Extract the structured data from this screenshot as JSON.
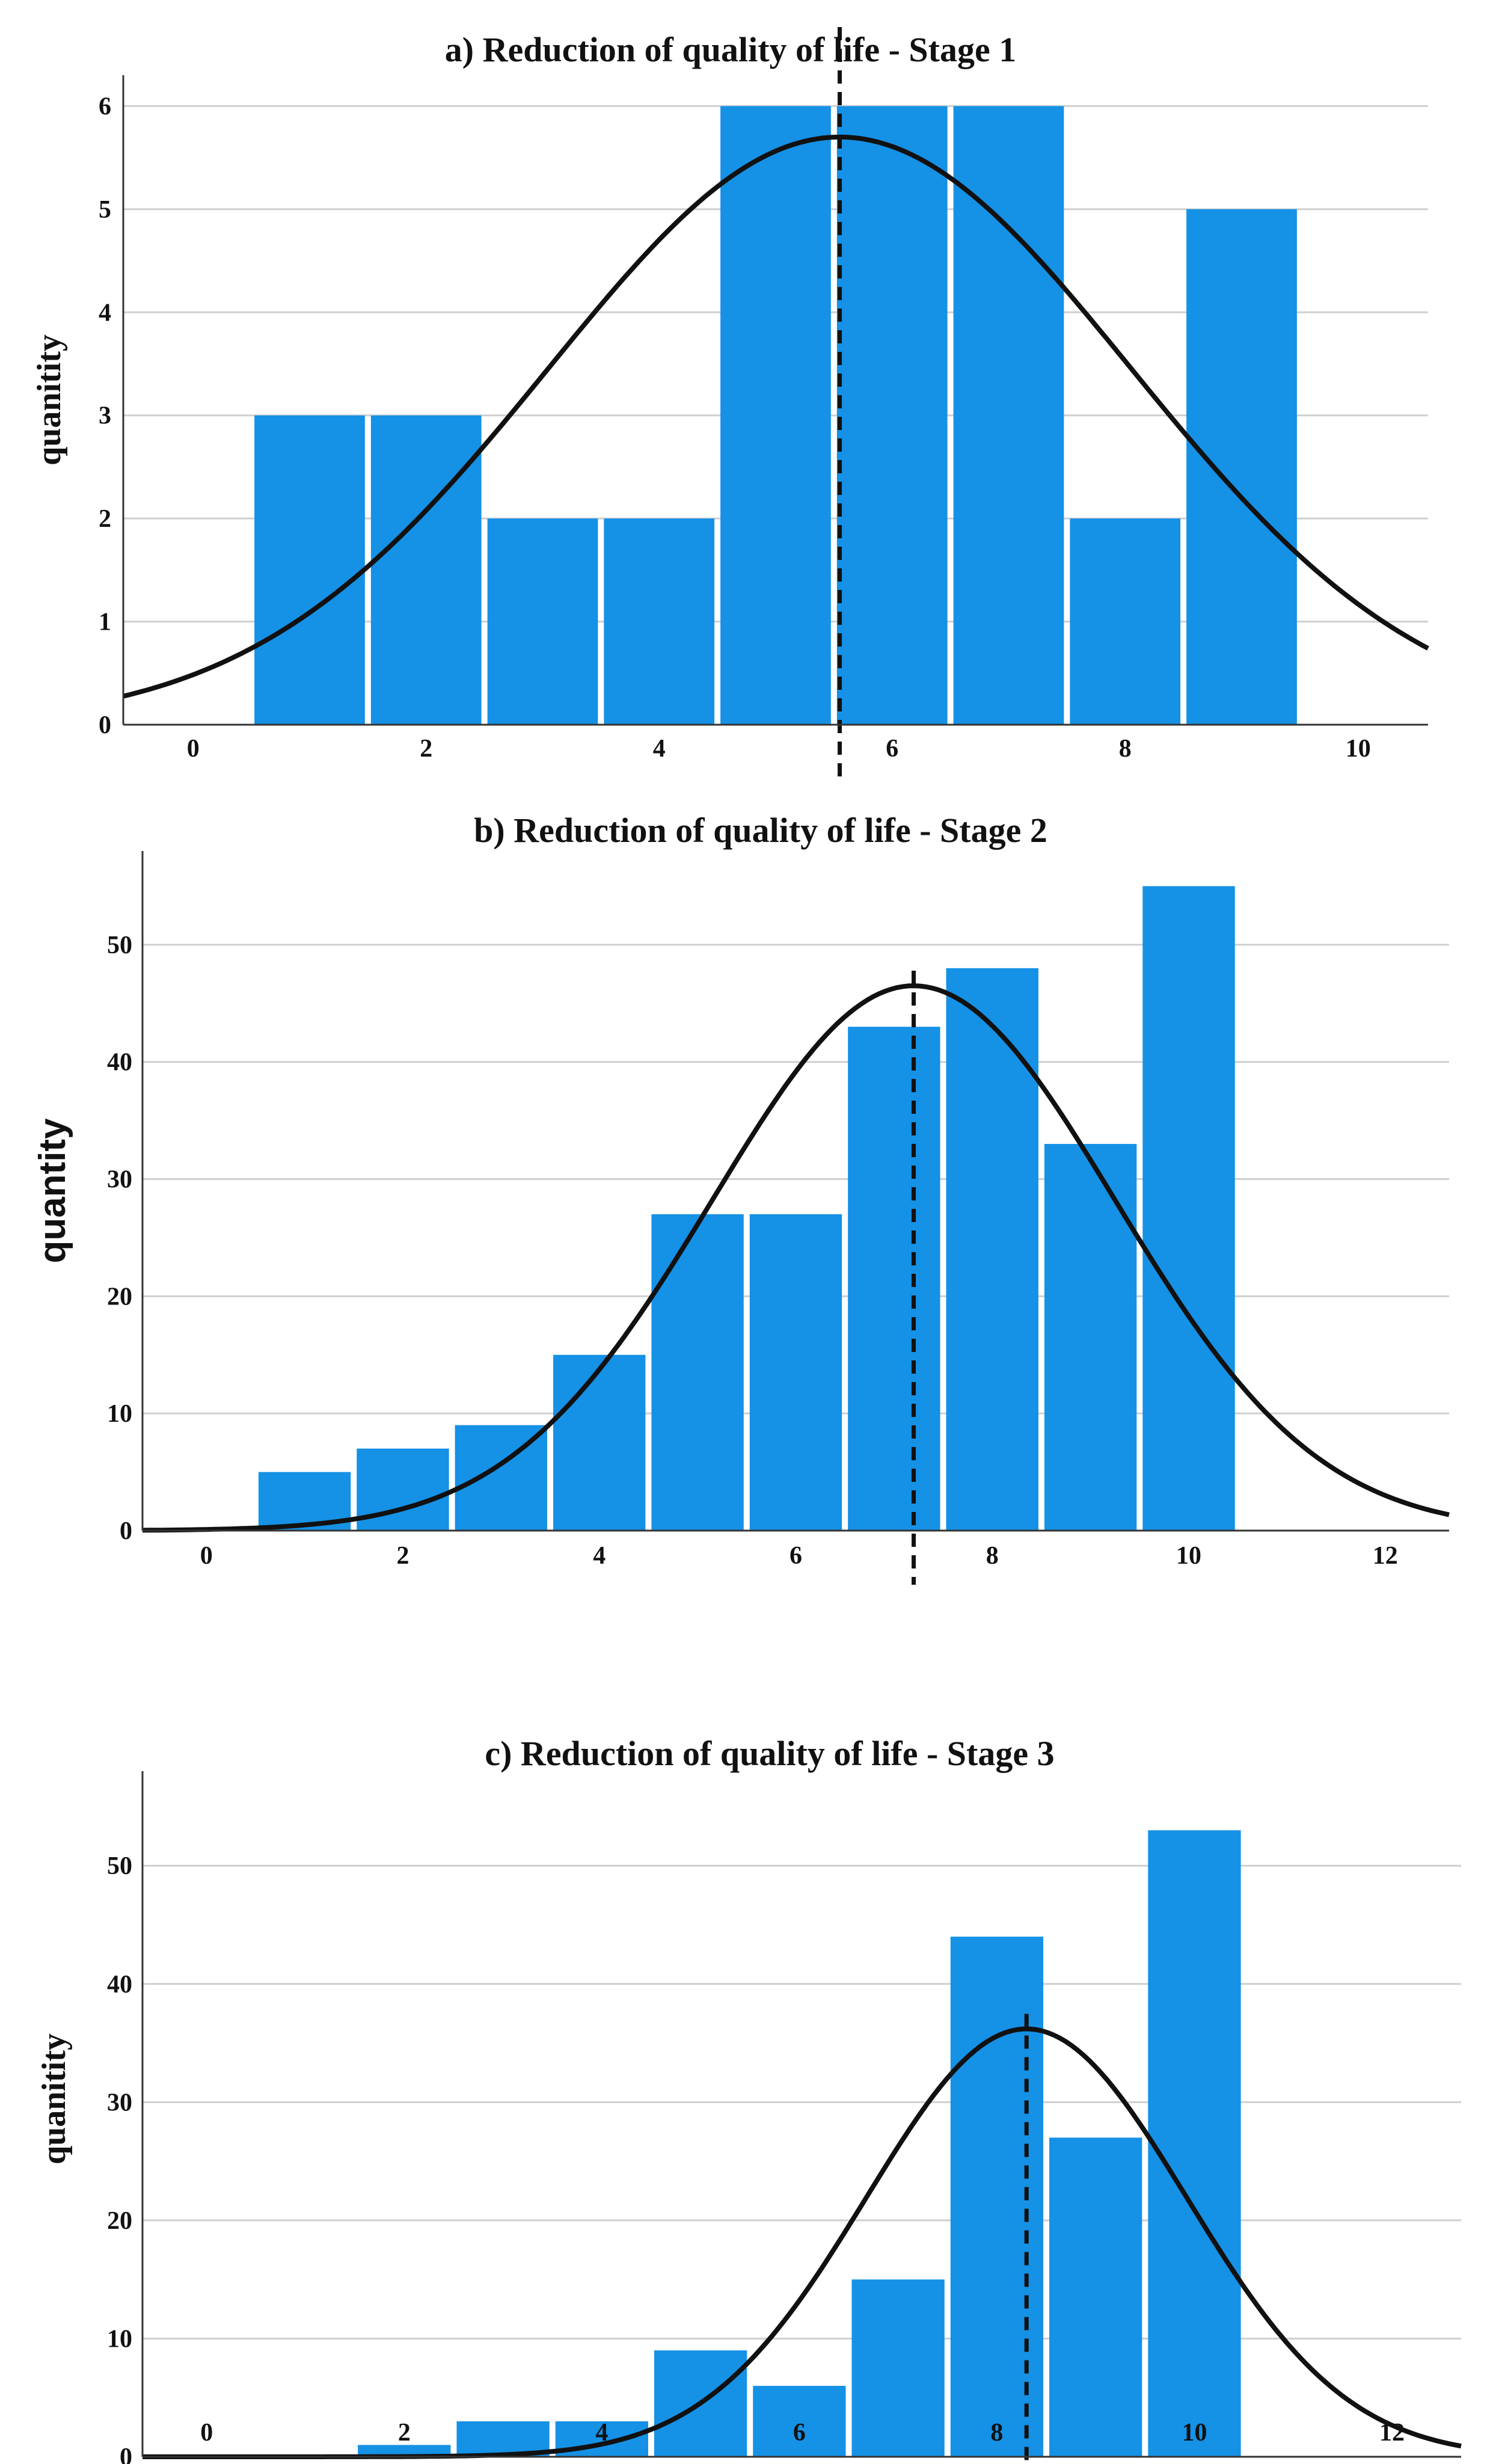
{
  "chart_data": [
    {
      "type": "bar",
      "title": "a) Reduction of quality of life - Stage 1",
      "xlabel": "",
      "ylabel": "quanitity",
      "bar_color": "#1591e6",
      "x": [
        1,
        2,
        3,
        4,
        5,
        6,
        7,
        8,
        9
      ],
      "values": [
        3,
        3,
        2,
        2,
        6,
        6,
        6,
        2,
        5
      ],
      "xlim": [
        -0.6,
        10.6
      ],
      "ylim": [
        0,
        6.3
      ],
      "xticks": [
        0,
        2,
        4,
        6,
        8,
        10
      ],
      "yticks": [
        0,
        1,
        2,
        3,
        4,
        5,
        6
      ],
      "grid": true,
      "normal_curve": {
        "mean": 5.55,
        "sd": 2.5,
        "peak": 5.7
      },
      "mean_line": 5.55
    },
    {
      "type": "bar",
      "title": "b) Reduction of quality of life - Stage 2",
      "xlabel": "",
      "ylabel": "quantity",
      "bar_color": "#1591e6",
      "x": [
        1,
        2,
        3,
        4,
        5,
        6,
        7,
        8,
        9,
        10
      ],
      "values": [
        5,
        7,
        9,
        15,
        27,
        27,
        43,
        48,
        33,
        55
      ],
      "xlim": [
        -0.65,
        12.65
      ],
      "ylim": [
        0,
        58
      ],
      "xticks": [
        0,
        2,
        4,
        6,
        8,
        10,
        12
      ],
      "yticks": [
        0,
        10,
        20,
        30,
        40,
        50
      ],
      "grid": true,
      "normal_curve": {
        "mean": 7.2,
        "sd": 2.05,
        "peak": 46.5
      },
      "mean_line": 7.2
    },
    {
      "type": "bar",
      "title": "c) Reduction of quality of life - Stage 3",
      "xlabel": "",
      "ylabel": "quanitity",
      "bar_color": "#1591e6",
      "x": [
        2,
        3,
        4,
        5,
        6,
        7,
        8,
        9,
        10
      ],
      "values": [
        1,
        3,
        3,
        9,
        6,
        15,
        44,
        27,
        53
      ],
      "xlim": [
        -0.65,
        12.7
      ],
      "ylim": [
        0,
        58
      ],
      "xticks": [
        0,
        2,
        4,
        6,
        8,
        10,
        12
      ],
      "yticks": [
        0,
        10,
        20,
        30,
        40,
        50
      ],
      "grid": true,
      "normal_curve": {
        "mean": 8.3,
        "sd": 1.62,
        "peak": 36.2
      },
      "mean_line": 8.3
    }
  ]
}
